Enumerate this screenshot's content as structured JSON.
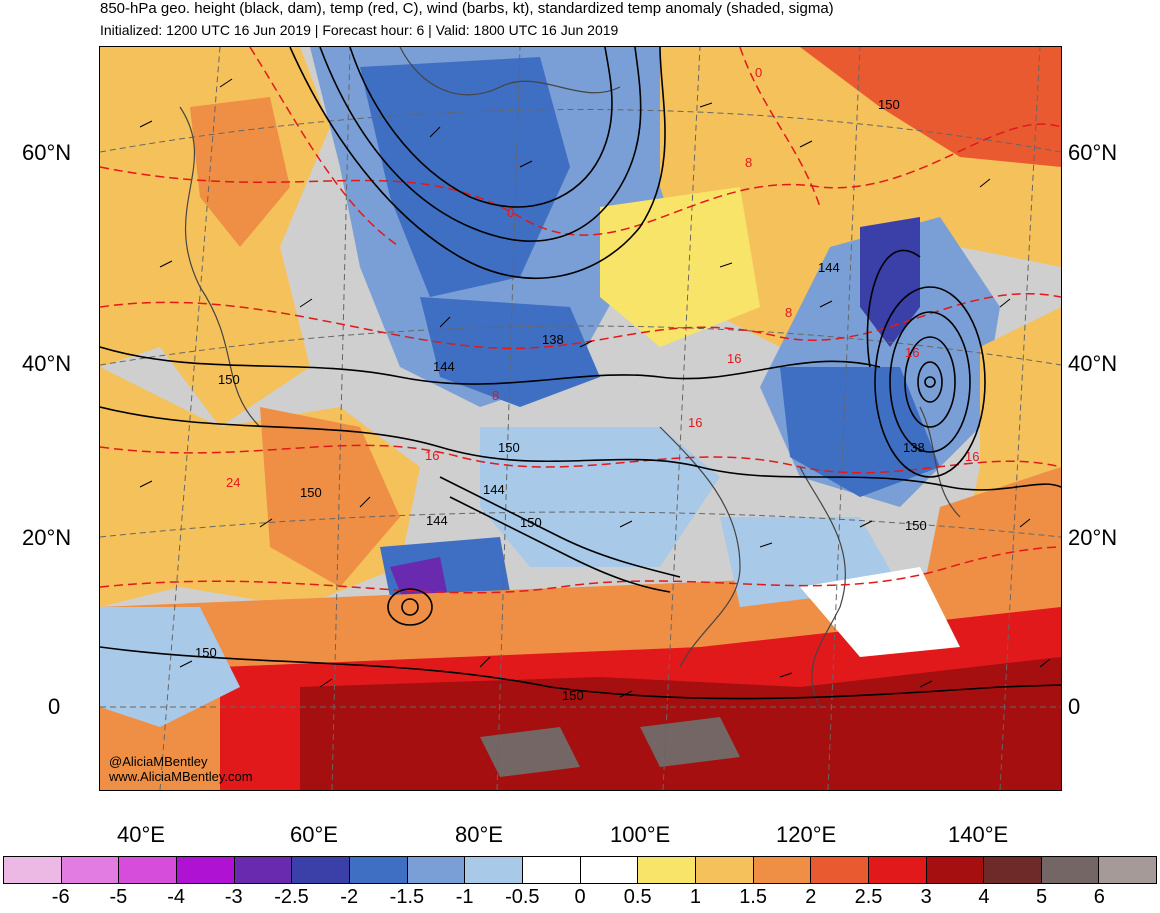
{
  "title": "850-hPa geo. height (black, dam), temp (red, C), wind (barbs, kt), standardized temp anomaly (shaded, sigma)",
  "subtitle": "Initialized: 1200 UTC 16 Jun 2019 | Forecast hour: 6 | Valid: 1800 UTC 16 Jun 2019",
  "lat_labels": [
    "60°N",
    "40°N",
    "20°N",
    "0"
  ],
  "lon_labels": [
    "40°E",
    "60°E",
    "80°E",
    "100°E",
    "120°E",
    "140°E"
  ],
  "credit": {
    "handle": "@AliciaMBentley",
    "site": "www.AliciaMBentley.com"
  },
  "height_contour_labels": [
    "150",
    "144",
    "138",
    "150",
    "144",
    "150",
    "144",
    "150",
    "150",
    "144",
    "138",
    "150",
    "150",
    "150"
  ],
  "temp_contour_labels": [
    "0",
    "8",
    "0",
    "16",
    "8",
    "16",
    "24",
    "8",
    "16",
    "16",
    "16"
  ],
  "colorbar": {
    "colors": [
      "#ecb8e4",
      "#e27be2",
      "#d64ddb",
      "#b012d3",
      "#6a2ab0",
      "#3b3fa8",
      "#3f6fc3",
      "#7a9fd6",
      "#a9c9e8",
      "#ffffff",
      "#ffffff",
      "#f9e46a",
      "#f5c15a",
      "#ef8f45",
      "#ea5a30",
      "#e2191b",
      "#a50f0f",
      "#6e2a28",
      "#736664",
      "#a69a98"
    ],
    "labels": [
      "-6",
      "-5",
      "-4",
      "-3",
      "-2.5",
      "-2",
      "-1.5",
      "-1",
      "-0.5",
      "0",
      "0.5",
      "1",
      "1.5",
      "2",
      "2.5",
      "3",
      "4",
      "5",
      "6"
    ]
  }
}
